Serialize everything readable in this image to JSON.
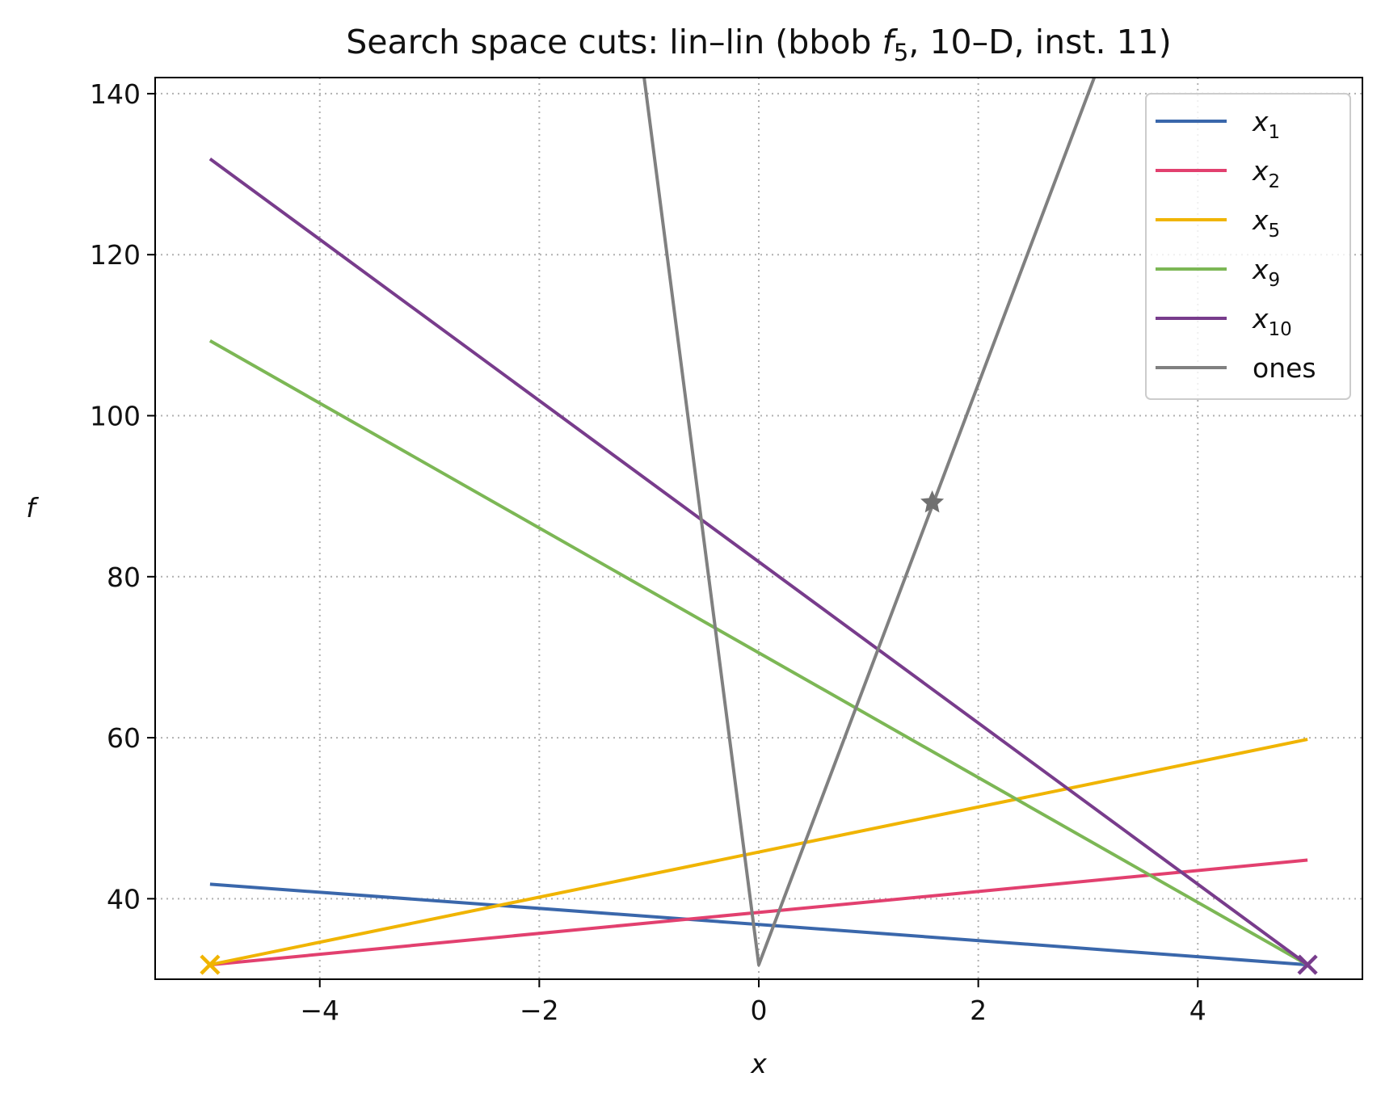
{
  "chart_data": {
    "type": "line",
    "title": {
      "prefix": "Search space cuts: lin–lin (bbob ",
      "func": "f",
      "func_sub": "5",
      "suffix": ", 10–D, inst. 11)"
    },
    "xlabel": "x",
    "ylabel": "f",
    "xlim": [
      -5.5,
      5.5
    ],
    "ylim": [
      30,
      142
    ],
    "xticks": [
      -4,
      -2,
      0,
      2,
      4
    ],
    "xtick_labels": [
      "−4",
      "−2",
      "0",
      "2",
      "4"
    ],
    "yticks": [
      40,
      60,
      80,
      100,
      120,
      140
    ],
    "ytick_labels": [
      "40",
      "60",
      "80",
      "100",
      "120",
      "140"
    ],
    "grid": true,
    "legend_position": "top-right",
    "series": [
      {
        "name": "x",
        "name_sub": "1",
        "color": "#3a67ab",
        "x": [
          -5,
          5
        ],
        "y": [
          41.8,
          31.8
        ]
      },
      {
        "name": "x",
        "name_sub": "2",
        "color": "#e2406f",
        "x": [
          -5,
          5
        ],
        "y": [
          31.8,
          44.8
        ]
      },
      {
        "name": "x",
        "name_sub": "5",
        "color": "#f0b400",
        "x": [
          -5,
          5
        ],
        "y": [
          31.8,
          59.8
        ]
      },
      {
        "name": "x",
        "name_sub": "9",
        "color": "#7cb755",
        "x": [
          -5,
          5
        ],
        "y": [
          109.3,
          31.8
        ]
      },
      {
        "name": "x",
        "name_sub": "10",
        "color": "#783c8c",
        "x": [
          -5,
          5
        ],
        "y": [
          131.9,
          31.8
        ]
      },
      {
        "name": "ones",
        "name_sub": "",
        "color": "#808080",
        "x": [
          -1.5,
          0,
          3.5
        ],
        "y": [
          190,
          31.8,
          158
        ]
      }
    ],
    "markers": [
      {
        "type": "x",
        "color": "#f0b400",
        "x": -5,
        "y": 31.8
      },
      {
        "type": "x",
        "color": "#783c8c",
        "x": 5,
        "y": 31.8
      },
      {
        "type": "star",
        "color": "#707070",
        "x": 1.58,
        "y": 89.2
      }
    ]
  }
}
